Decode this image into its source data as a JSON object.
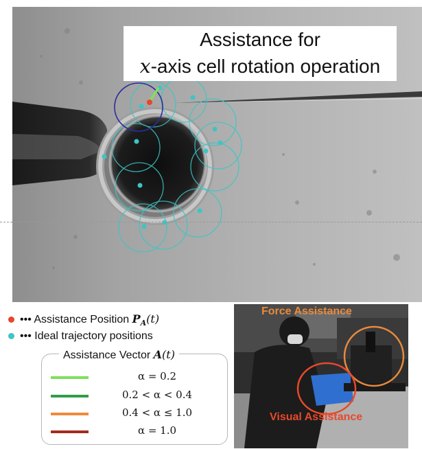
{
  "title": {
    "line1": "Assistance for",
    "line2_var": "x",
    "line2_rest": "-axis cell rotation operation"
  },
  "legend": {
    "assist_position": {
      "dots": "•••",
      "label": "Assistance Position ",
      "symbol": "P",
      "subscript": "A",
      "arg": "(t)",
      "color": "#e8452c"
    },
    "ideal_positions": {
      "dots": "•••",
      "label": "Ideal trajectory positions",
      "color": "#3fc4c4"
    }
  },
  "vector_box": {
    "title": "Assistance Vector ",
    "symbol": "A",
    "arg": "(t)",
    "items": [
      {
        "label": "α = 0.2",
        "color": "#7ee05a"
      },
      {
        "label": "0.2 < α < 0.4",
        "color": "#2f9e4a"
      },
      {
        "label": "0.4 < α ≤ 1.0",
        "color": "#f08a3c"
      },
      {
        "label": "α = 1.0",
        "color": "#a52a1e"
      }
    ]
  },
  "photo": {
    "force_label": "Force Assistance",
    "visual_label": "Visual Assistance"
  }
}
